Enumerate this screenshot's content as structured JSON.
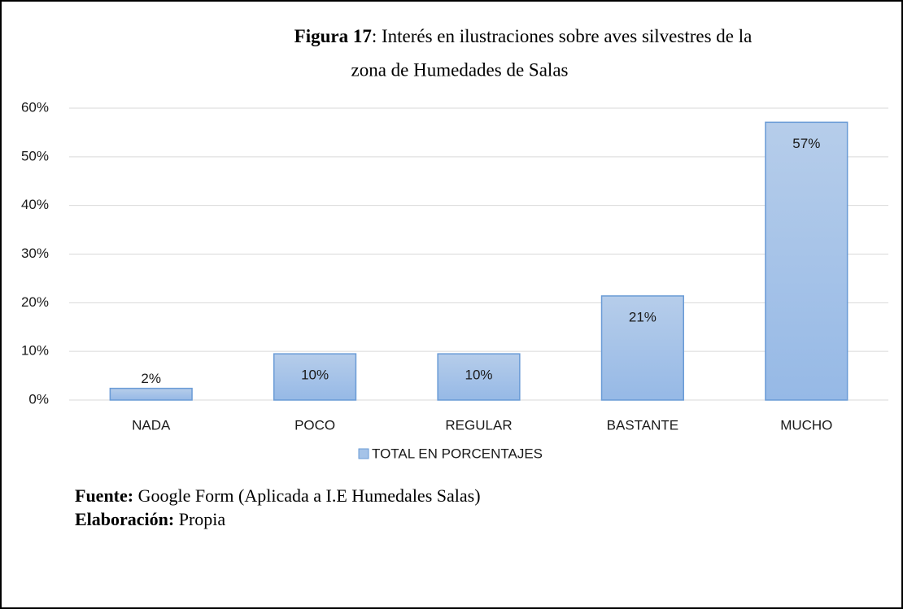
{
  "chart_data": {
    "type": "bar",
    "figure_label": "Figura 17",
    "title_lines": [
      ": Interés en ilustraciones sobre aves silvestres de la",
      "zona de Humedades de Salas"
    ],
    "categories": [
      "NADA",
      "POCO",
      "REGULAR",
      "BASTANTE",
      "MUCHO"
    ],
    "series": [
      {
        "name": "TOTAL EN PORCENTAJES",
        "color": "#a5c3e8",
        "values": [
          2.4,
          9.5,
          9.5,
          21.4,
          57.1
        ],
        "value_labels": [
          "2%",
          "10%",
          "10%",
          "21%",
          "57%"
        ]
      }
    ],
    "ylim": [
      0,
      60
    ],
    "yticks": [
      {
        "value": 0,
        "label": "0%"
      },
      {
        "value": 10,
        "label": "10%"
      },
      {
        "value": 20,
        "label": "20%"
      },
      {
        "value": 30,
        "label": "30%"
      },
      {
        "value": 40,
        "label": "40%"
      },
      {
        "value": 50,
        "label": "50%"
      },
      {
        "value": 60,
        "label": "60%"
      }
    ],
    "grid": true,
    "legend": "bottom"
  },
  "source": {
    "label": "Fuente:",
    "text": "Google Form (Aplicada a I.E Humedales Salas)"
  },
  "credit": {
    "label": "Elaboración:",
    "text": "Propia"
  }
}
